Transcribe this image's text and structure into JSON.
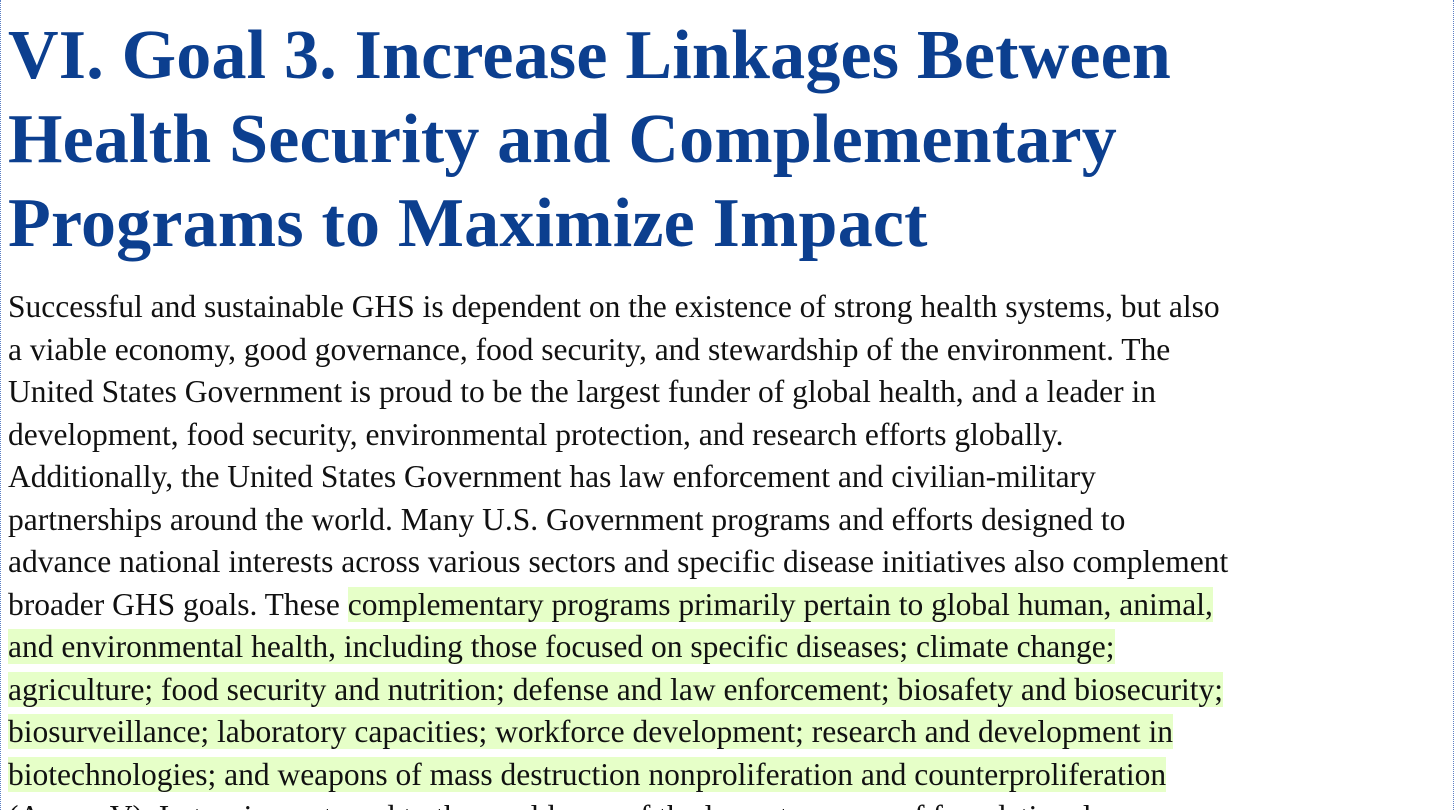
{
  "document": {
    "heading_lines": [
      "VI. Goal 3. Increase Linkages Between",
      "Health Security and Complementary",
      "Programs to Maximize Impact"
    ],
    "body_lines": [
      {
        "plain": "Successful and sustainable GHS is dependent on the existence of strong health systems, but also",
        "highlight": ""
      },
      {
        "plain": "a viable economy, good governance, food security, and stewardship of the environment. The",
        "highlight": ""
      },
      {
        "plain": "United States Government is proud to be the largest funder of global health, and a leader in",
        "highlight": ""
      },
      {
        "plain": "development, food security, environmental protection, and research efforts globally.",
        "highlight": ""
      },
      {
        "plain": "Additionally, the United States Government has law enforcement and civilian-military",
        "highlight": ""
      },
      {
        "plain": "partnerships around the world. Many U.S. Government programs and efforts designed to",
        "highlight": ""
      },
      {
        "plain": "advance national interests across various sectors and specific disease initiatives also complement",
        "highlight": ""
      },
      {
        "plain": "broader GHS goals. These ",
        "highlight": "complementary programs primarily pertain to global human, animal,"
      },
      {
        "plain": "",
        "highlight": "and environmental health, including those focused on specific diseases; climate change;"
      },
      {
        "plain": "",
        "highlight": "agriculture; food security and nutrition; defense and law enforcement; biosafety and biosecurity;"
      },
      {
        "plain": "",
        "highlight": "biosurveillance; laboratory capacities; workforce development; research and development in"
      },
      {
        "plain": "",
        "highlight": "biotechnologies; and weapons of mass destruction nonproliferation and counterproliferation"
      },
      {
        "plain": "(Annex V). In turning outward to the world, one of the largest sources of foundational",
        "highlight": ""
      }
    ]
  },
  "colors": {
    "heading": "#0c3f8f",
    "highlight": "#e6ffc8",
    "frame": "#5b7fc4"
  }
}
